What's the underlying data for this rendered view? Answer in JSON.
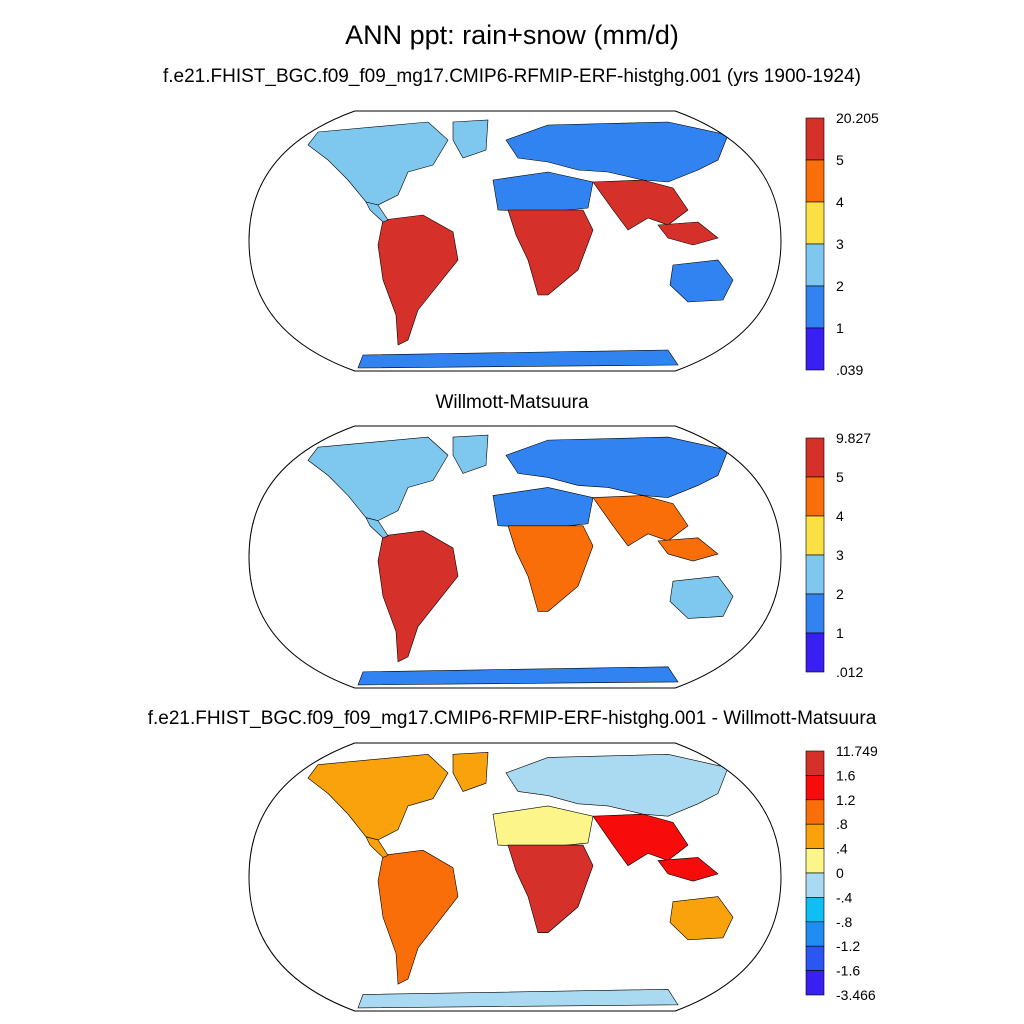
{
  "title": "ANN ppt: rain+snow (mm/d)",
  "colors": {
    "ocean": "#ffffff",
    "outline": "#000000"
  },
  "panels": [
    {
      "title": "f.e21.FHIST_BGC.f09_f09_mg17.CMIP6-RFMIP-ERF-histghg.001 (yrs 1900-1924)",
      "colorbar": {
        "labels": [
          "20.205",
          "5",
          "4",
          "3",
          "2",
          "1",
          ".039"
        ],
        "colors": [
          "#d6302a",
          "#fa6e0a",
          "#fbe044",
          "#7ec8ef",
          "#3183f2",
          "#3a1ff2"
        ]
      },
      "regions": {
        "amazon": 5,
        "congo": 5,
        "sahara": 1,
        "south-asia": 5,
        "north-america": 2,
        "eurasia": 1,
        "australia": 1,
        "antarctica": 1
      }
    },
    {
      "title": "Willmott-Matsuura",
      "colorbar": {
        "labels": [
          "9.827",
          "5",
          "4",
          "3",
          "2",
          "1",
          ".012"
        ],
        "colors": [
          "#d6302a",
          "#fa6e0a",
          "#fbe044",
          "#7ec8ef",
          "#3183f2",
          "#3a1ff2"
        ]
      },
      "regions": {
        "amazon": 5,
        "congo": 4,
        "sahara": 1,
        "south-asia": 4,
        "north-america": 2,
        "eurasia": 1,
        "australia": 2,
        "antarctica": 1
      }
    },
    {
      "title": "f.e21.FHIST_BGC.f09_f09_mg17.CMIP6-RFMIP-ERF-histghg.001 - Willmott-Matsuura",
      "colorbar": {
        "labels": [
          "11.749",
          "1.6",
          "1.2",
          ".8",
          ".4",
          "0",
          "-.4",
          "-.8",
          "-1.2",
          "-1.6",
          "-3.466"
        ],
        "colors": [
          "#d6302a",
          "#f80b0b",
          "#fa6e0a",
          "#f9a20c",
          "#fbf58a",
          "#aadaf2",
          "#0fbef3",
          "#1f8df2",
          "#2b56f2",
          "#3a1ff2"
        ]
      },
      "regions": {
        "amazon": 1,
        "congo": 1.6,
        "sahara": 0.2,
        "south-asia": 1.2,
        "north-america": 0.4,
        "eurasia": -0.2,
        "australia": 0.6,
        "antarctica": -0.4
      }
    }
  ]
}
